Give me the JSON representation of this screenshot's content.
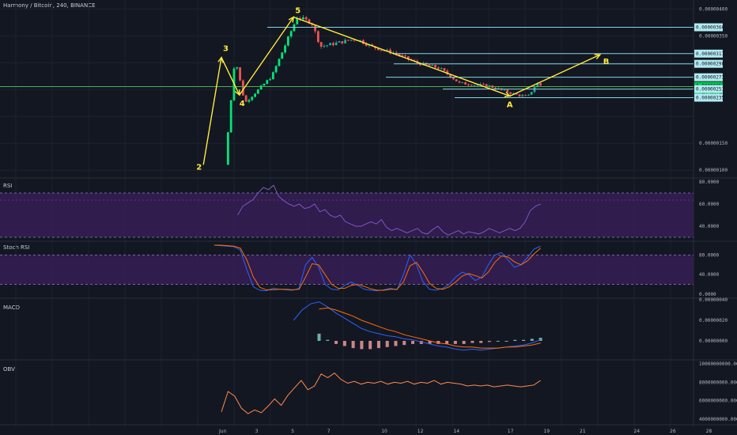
{
  "header": {
    "symbol_title": "Harmony / Bitcoin, 240, BINANCE"
  },
  "colors": {
    "background": "#131722",
    "grid": "#1e222d",
    "up": "#26a69a",
    "down": "#ef5350",
    "bright_up": "#00e676",
    "drawing": "#ffeb3b",
    "level_line": "#7fd7e6",
    "level_box": "#b2ebf2",
    "support_line": "#4caf50",
    "rsi_line": "#7e57c2",
    "band_fill": "#3b1f5c",
    "stoch_k": "#2962ff",
    "stoch_d": "#ff6d00",
    "macd_line": "#2962ff",
    "signal_line": "#ff6d00",
    "obv_line": "#ff8a4a"
  },
  "panes": {
    "rsi": {
      "title": "RSI"
    },
    "stoch": {
      "title": "Stoch RSI"
    },
    "macd": {
      "title": "MACD"
    },
    "obv": {
      "title": "OBV"
    }
  },
  "chart_data": [
    {
      "type": "candlestick",
      "title": "Harmony / Bitcoin, 240, BINANCE",
      "ylim": [
        9e-07,
        4.05e-06
      ],
      "yticks": [
        "0.00000400",
        "0.00000350",
        "0.00000150",
        "0.00000100"
      ],
      "price_levels": [
        "0.00000366",
        "0.00000317",
        "0.00000298",
        "0.00000273",
        "0.00000257",
        "0.00000251",
        "0.00000235"
      ],
      "current_price": "0.00000257",
      "countdown": "01:57:08",
      "x_tick_labels": [
        "Jun",
        "3",
        "5",
        "7",
        "10",
        "12",
        "14",
        "17",
        "19",
        "21",
        "24",
        "26",
        "28"
      ],
      "wave_labels": [
        "2",
        "3",
        "4",
        "5",
        "A",
        "B"
      ],
      "wave_points": [
        {
          "label": "2",
          "date": "May 31",
          "price": 1.1e-06
        },
        {
          "label": "3",
          "date": "Jun 1",
          "price": 3.1e-06
        },
        {
          "label": "4",
          "date": "Jun 2",
          "price": 2.4e-06
        },
        {
          "label": "5",
          "date": "Jun 5",
          "price": 3.85e-06
        },
        {
          "label": "A",
          "date": "Jun 17",
          "price": 2.38e-06
        },
        {
          "label": "B",
          "date": "Jun 22",
          "price": 3.15e-06
        }
      ]
    },
    {
      "type": "line",
      "title": "RSI",
      "ylim": [
        30,
        80
      ],
      "yticks": [
        "80.0000",
        "60.0000",
        "40.0000"
      ],
      "band": [
        30,
        70
      ],
      "series": [
        {
          "name": "",
          "values": [
            50,
            58,
            61,
            64,
            70,
            75,
            73,
            77,
            67,
            63,
            60,
            58,
            60,
            56,
            57,
            60,
            53,
            55,
            50,
            48,
            50,
            44,
            42,
            40,
            40,
            42,
            44,
            42,
            46,
            39,
            36,
            38,
            36,
            34,
            36,
            38,
            34,
            33,
            37,
            40,
            35,
            32,
            34,
            36,
            33,
            35,
            34,
            33,
            35,
            38,
            36,
            34,
            36,
            38,
            36,
            38,
            44,
            54,
            58,
            60
          ]
        }
      ]
    },
    {
      "type": "line",
      "title": "Stoch RSI",
      "ylim": [
        0,
        100
      ],
      "yticks": [
        "80.0000",
        "40.0000",
        "0.0000"
      ],
      "band": [
        20,
        80
      ],
      "series": [
        {
          "name": "",
          "values": [
            100,
            99,
            98,
            97,
            90,
            50,
            15,
            8,
            7,
            12,
            10,
            9,
            8,
            12,
            60,
            75,
            55,
            20,
            10,
            9,
            18,
            25,
            18,
            10,
            8,
            7,
            9,
            12,
            9,
            40,
            80,
            60,
            25,
            10,
            8,
            12,
            20,
            35,
            45,
            40,
            28,
            35,
            60,
            80,
            85,
            70,
            55,
            60,
            75,
            92,
            98
          ]
        },
        {
          "name": "",
          "values": [
            100,
            100,
            99,
            98,
            94,
            70,
            35,
            14,
            9,
            9,
            10,
            10,
            9,
            10,
            35,
            62,
            60,
            40,
            20,
            12,
            12,
            18,
            20,
            16,
            11,
            8,
            8,
            10,
            10,
            25,
            58,
            65,
            45,
            22,
            12,
            10,
            15,
            25,
            37,
            42,
            38,
            33,
            45,
            65,
            78,
            76,
            66,
            60,
            68,
            82,
            94
          ]
        }
      ]
    },
    {
      "type": "line",
      "title": "MACD",
      "yticks": [
        "0.00000040",
        "0.00000020",
        "0.00000000"
      ],
      "series": [
        {
          "name": "",
          "values": [
            2e-07,
            3e-07,
            3.6e-07,
            3.8e-07,
            3.3e-07,
            2.7e-07,
            2.2e-07,
            1.7e-07,
            1.2e-07,
            9e-08,
            7e-08,
            5e-08,
            4e-08,
            2e-08,
            1e-08,
            -1e-08,
            -3e-08,
            -5e-08,
            -6e-08,
            -8e-08,
            -9e-08,
            -8e-08,
            -9e-08,
            -8e-08,
            -7e-08,
            -6e-08,
            -5e-08,
            -4e-08,
            -2e-08,
            1e-08
          ]
        },
        {
          "name": "",
          "values": [
            null,
            null,
            null,
            3.1e-07,
            3.2e-07,
            3e-07,
            2.7e-07,
            2.4e-07,
            2e-07,
            1.7e-07,
            1.4e-07,
            1.1e-07,
            9e-08,
            6e-08,
            4e-08,
            2e-08,
            0.0,
            -2e-08,
            -3e-08,
            -5e-08,
            -6e-08,
            -6e-08,
            -7e-08,
            -7e-08,
            -7e-08,
            -6e-08,
            -6e-08,
            -5e-08,
            -4e-08,
            -2e-08
          ]
        }
      ]
    },
    {
      "type": "line",
      "title": "OBV",
      "ylim": [
        4000000000,
        10000000000
      ],
      "yticks": [
        "10000000000.0000",
        "8000000000.0000",
        "6000000000.0000",
        "4000000000.0000"
      ],
      "series": [
        {
          "name": "",
          "values": [
            4800000000,
            7000000000,
            6500000000,
            5200000000,
            4600000000,
            5000000000,
            4700000000,
            5400000000,
            6200000000,
            5500000000,
            6600000000,
            7400000000,
            8200000000,
            7200000000,
            7600000000,
            8900000000,
            8500000000,
            9000000000,
            8300000000,
            7900000000,
            8100000000,
            7800000000,
            8000000000,
            7900000000,
            8100000000,
            7800000000,
            8000000000,
            7900000000,
            8100000000,
            7800000000,
            8000000000,
            7900000000,
            8200000000,
            7800000000,
            8000000000,
            7900000000,
            7800000000,
            7600000000,
            7700000000,
            7600000000,
            7700000000,
            7500000000,
            7600000000,
            7700000000,
            7600000000,
            7500000000,
            7600000000,
            7700000000,
            8200000000
          ]
        }
      ]
    }
  ]
}
